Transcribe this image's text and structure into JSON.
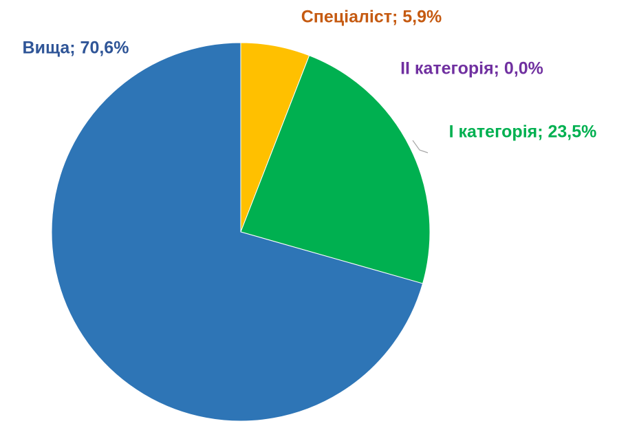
{
  "chart_data": {
    "type": "pie",
    "values": [
      5.9,
      0.0,
      23.5,
      70.6
    ],
    "value_labels": [
      "Спеціаліст; 5,9%",
      "ІІ категорія; 0,0%",
      "І категорія; 23,5%",
      "Вища; 70,6%"
    ],
    "colors": [
      "#FFC000",
      "#7030A0",
      "#00B050",
      "#2E75B6"
    ],
    "label_colors": [
      "#C55A11",
      "#7030A0",
      "#00B050",
      "#2F5597"
    ]
  }
}
